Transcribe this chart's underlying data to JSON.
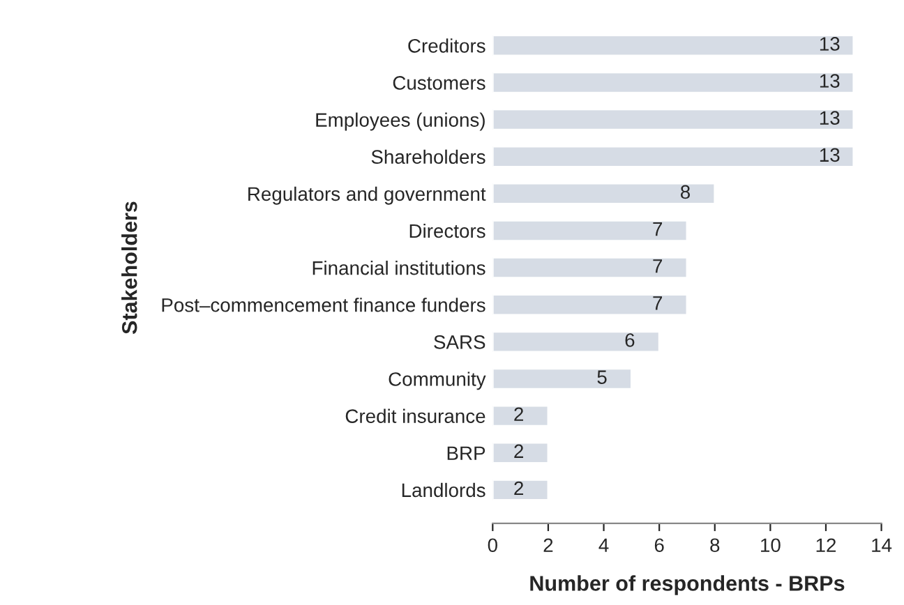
{
  "chart_data": {
    "type": "bar",
    "orientation": "horizontal",
    "xlabel": "Number of respondents - BRPs",
    "ylabel": "Stakeholders",
    "categories": [
      "Creditors",
      "Customers",
      "Employees (unions)",
      "Shareholders",
      "Regulators and government",
      "Directors",
      "Financial institutions",
      "Post–commencement finance funders",
      "SARS",
      "Community",
      "Credit insurance",
      "BRP",
      "Landlords"
    ],
    "values": [
      13,
      13,
      13,
      13,
      8,
      7,
      7,
      7,
      6,
      5,
      2,
      2,
      2
    ],
    "color": "#d6dce5",
    "xlim": [
      0,
      14
    ],
    "xticks": [
      0,
      2,
      4,
      6,
      8,
      10,
      12,
      14
    ],
    "data_labels": true,
    "grid": false,
    "legend": false
  }
}
